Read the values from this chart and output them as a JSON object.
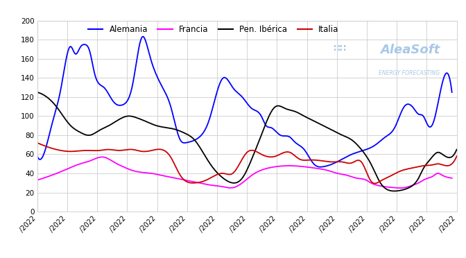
{
  "title": "",
  "legend": [
    "Alemania",
    "Francia",
    "Pen. Ibérica",
    "Italia"
  ],
  "colors": {
    "Alemania": "#0000ff",
    "Francia": "#ff00ff",
    "Pen. Ibérica": "#000000",
    "Italia": "#cc0000"
  },
  "ylim": [
    0,
    200
  ],
  "yticks": [
    0,
    20,
    40,
    60,
    80,
    100,
    120,
    140,
    160,
    180,
    200
  ],
  "background": "#ffffff",
  "grid_color": "#cccccc",
  "n_ticks": 15,
  "alemania_kp": [
    0,
    58,
    3,
    62,
    6,
    90,
    10,
    130,
    14,
    173,
    16,
    165,
    18,
    172,
    20,
    175,
    22,
    168,
    24,
    145,
    28,
    130,
    32,
    115,
    36,
    112,
    40,
    133,
    44,
    183,
    47,
    165,
    50,
    143,
    53,
    128,
    56,
    110,
    60,
    75,
    62,
    72,
    64,
    73,
    68,
    78,
    72,
    95,
    78,
    140,
    82,
    130,
    86,
    120,
    90,
    108,
    94,
    100,
    96,
    90,
    98,
    88,
    102,
    80,
    106,
    78,
    108,
    73,
    112,
    65,
    116,
    50,
    120,
    47,
    124,
    50,
    128,
    55,
    132,
    60,
    138,
    65,
    142,
    70,
    146,
    78,
    150,
    88,
    154,
    110,
    158,
    108,
    160,
    102,
    162,
    100,
    164,
    90,
    166,
    92,
    170,
    135,
    174,
    125
  ],
  "francia_kp": [
    0,
    33,
    6,
    38,
    12,
    44,
    18,
    50,
    22,
    53,
    28,
    57,
    32,
    52,
    36,
    47,
    40,
    43,
    44,
    41,
    48,
    40,
    52,
    38,
    56,
    36,
    60,
    34,
    64,
    32,
    68,
    30,
    72,
    28,
    78,
    26,
    82,
    25,
    86,
    30,
    90,
    38,
    96,
    45,
    100,
    47,
    106,
    48,
    112,
    47,
    118,
    45,
    122,
    43,
    126,
    40,
    130,
    38,
    134,
    35,
    138,
    33,
    140,
    30,
    142,
    28,
    146,
    26,
    150,
    25,
    154,
    25,
    158,
    28,
    160,
    30,
    162,
    33,
    164,
    35,
    166,
    37,
    168,
    40,
    170,
    38,
    172,
    36,
    174,
    35
  ],
  "pen_iberica_kp": [
    0,
    125,
    4,
    120,
    8,
    110,
    14,
    90,
    18,
    83,
    22,
    80,
    26,
    85,
    30,
    90,
    34,
    96,
    38,
    100,
    42,
    98,
    46,
    94,
    50,
    90,
    54,
    88,
    58,
    86,
    62,
    82,
    66,
    75,
    70,
    60,
    74,
    45,
    78,
    35,
    82,
    30,
    86,
    35,
    90,
    55,
    94,
    80,
    100,
    110,
    104,
    108,
    108,
    105,
    112,
    100,
    116,
    95,
    120,
    90,
    124,
    85,
    128,
    80,
    132,
    75,
    136,
    65,
    140,
    50,
    144,
    30,
    148,
    22,
    152,
    22,
    156,
    25,
    160,
    35,
    162,
    45,
    164,
    52,
    166,
    58,
    168,
    62,
    170,
    60,
    172,
    57,
    176,
    65
  ],
  "italia_kp": [
    0,
    72,
    4,
    68,
    8,
    65,
    14,
    63,
    20,
    64,
    26,
    64,
    30,
    65,
    34,
    64,
    40,
    65,
    44,
    63,
    48,
    64,
    56,
    57,
    60,
    38,
    66,
    30,
    70,
    32,
    74,
    37,
    78,
    40,
    82,
    40,
    88,
    62,
    94,
    60,
    100,
    58,
    106,
    62,
    110,
    55,
    114,
    54,
    120,
    53,
    124,
    52,
    128,
    52,
    132,
    51,
    136,
    52,
    140,
    32,
    144,
    32,
    148,
    37,
    152,
    42,
    156,
    45,
    160,
    47,
    162,
    48,
    166,
    49,
    168,
    50,
    170,
    49,
    172,
    48,
    174,
    50,
    176,
    58
  ],
  "watermark_main": "AleaSoft",
  "watermark_sub": "ENERGY FORECASTING",
  "watermark_color": "#a8c8e8",
  "watermark_sub_color": "#a8c8e8"
}
